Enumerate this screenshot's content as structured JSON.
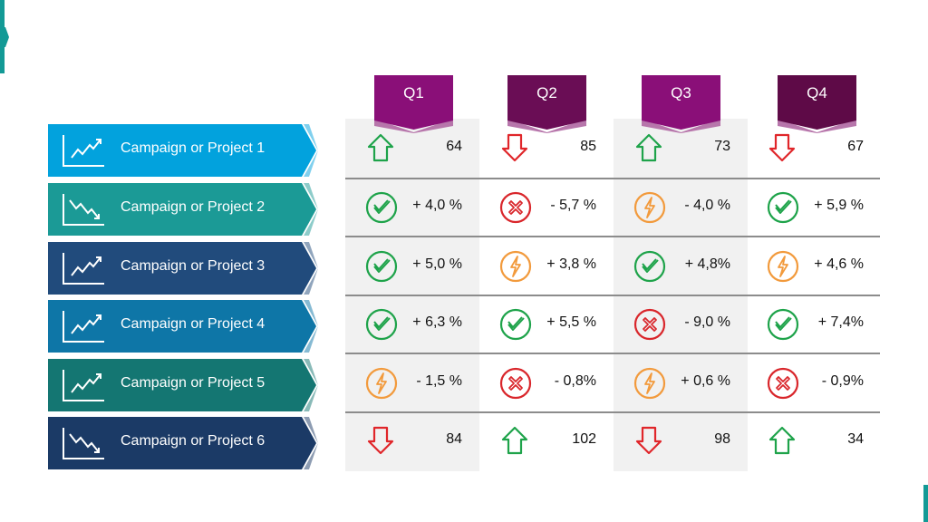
{
  "colors": {
    "accent": "#139a96",
    "up": "#1ea34a",
    "down": "#e0262a",
    "check": "#1ea34a",
    "cross": "#d9262b",
    "bolt": "#f29a3c",
    "column_shade": "#f1f1f1"
  },
  "quarters": [
    {
      "label": "Q1",
      "color": "#8a0f78"
    },
    {
      "label": "Q2",
      "color": "#6a0d55"
    },
    {
      "label": "Q3",
      "color": "#8a0f78"
    },
    {
      "label": "Q4",
      "color": "#5e0a47"
    }
  ],
  "rows": [
    {
      "label": "Campaign or Project 1",
      "color": "#02a2dd",
      "trend_icon": "trend-up-chart-icon",
      "cells": [
        {
          "icon": "up",
          "value": "64"
        },
        {
          "icon": "down",
          "value": "85"
        },
        {
          "icon": "up",
          "value": "73"
        },
        {
          "icon": "down",
          "value": "67"
        }
      ]
    },
    {
      "label": "Campaign or Project 2",
      "color": "#1b9a96",
      "trend_icon": "trend-down-chart-icon",
      "cells": [
        {
          "icon": "check",
          "value": "+ 4,0 %"
        },
        {
          "icon": "cross",
          "value": "- 5,7 %"
        },
        {
          "icon": "bolt",
          "value": "- 4,0 %"
        },
        {
          "icon": "check",
          "value": "+ 5,9 %"
        }
      ]
    },
    {
      "label": "Campaign or Project 3",
      "color": "#214b7c",
      "trend_icon": "trend-up-chart-icon",
      "cells": [
        {
          "icon": "check",
          "value": "+ 5,0 %"
        },
        {
          "icon": "bolt",
          "value": "+ 3,8 %"
        },
        {
          "icon": "check",
          "value": "+ 4,8%"
        },
        {
          "icon": "bolt",
          "value": "+ 4,6 %"
        }
      ]
    },
    {
      "label": "Campaign or Project 4",
      "color": "#0e76a7",
      "trend_icon": "trend-up-chart-icon",
      "cells": [
        {
          "icon": "check",
          "value": "+ 6,3 %"
        },
        {
          "icon": "check",
          "value": "+ 5,5 %"
        },
        {
          "icon": "cross",
          "value": "- 9,0 %"
        },
        {
          "icon": "check",
          "value": "+ 7,4%"
        }
      ]
    },
    {
      "label": "Campaign or Project 5",
      "color": "#147672",
      "trend_icon": "trend-up-chart-icon",
      "cells": [
        {
          "icon": "bolt",
          "value": "- 1,5 %"
        },
        {
          "icon": "cross",
          "value": "- 0,8%"
        },
        {
          "icon": "bolt",
          "value": "+ 0,6 %"
        },
        {
          "icon": "cross",
          "value": "- 0,9%"
        }
      ]
    },
    {
      "label": "Campaign or Project 6",
      "color": "#1b3a66",
      "trend_icon": "trend-down-chart-icon",
      "cells": [
        {
          "icon": "down",
          "value": "84"
        },
        {
          "icon": "up",
          "value": "102"
        },
        {
          "icon": "down",
          "value": "98"
        },
        {
          "icon": "up",
          "value": "34"
        }
      ]
    }
  ]
}
